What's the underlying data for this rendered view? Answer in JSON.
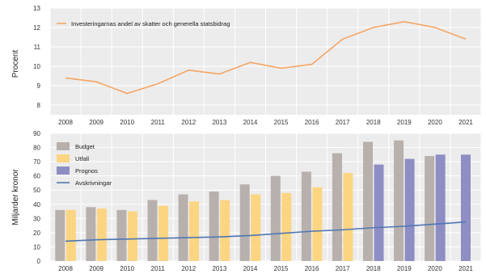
{
  "colors": {
    "panel_bg": "#ececec",
    "grid": "#ffffff",
    "line_series": "#f5a562",
    "budget": "#b8b0ac",
    "utfall": "#fcd582",
    "prognos": "#8e8ec4",
    "avskrivningar": "#4e77b3"
  },
  "chart_data": [
    {
      "type": "line",
      "title": "",
      "xlabel": "",
      "ylabel": "Procent",
      "x": [
        "2008",
        "2009",
        "2010",
        "2011",
        "2012",
        "2013",
        "2014",
        "2015",
        "2016",
        "2017",
        "2018",
        "2019",
        "2020",
        "2021"
      ],
      "series": [
        {
          "name": "Investeringarnas andel av skatter och generella statsbidrag",
          "values": [
            9.4,
            9.2,
            8.6,
            9.1,
            9.8,
            9.6,
            10.2,
            9.9,
            10.1,
            11.4,
            12.0,
            12.3,
            12.0,
            11.4
          ]
        }
      ],
      "ylim": [
        7.5,
        13
      ],
      "yticks": [
        "8",
        "9",
        "10",
        "11",
        "12",
        "13"
      ],
      "grid": true,
      "legend_position": "top-left"
    },
    {
      "type": "bar",
      "title": "",
      "xlabel": "",
      "ylabel": "Miljarder kronor",
      "categories": [
        "2008",
        "2009",
        "2010",
        "2011",
        "2012",
        "2013",
        "2014",
        "2015",
        "2016",
        "2017",
        "2018",
        "2019",
        "2020",
        "2021"
      ],
      "series": [
        {
          "name": "Budget",
          "values": [
            36,
            38,
            36,
            43,
            47,
            49,
            54,
            60,
            63,
            76,
            84,
            85,
            74,
            null
          ]
        },
        {
          "name": "Utfall",
          "values": [
            36,
            37,
            35,
            39,
            42,
            43,
            47,
            48,
            52,
            62,
            null,
            null,
            null,
            null
          ]
        },
        {
          "name": "Prognos",
          "values": [
            null,
            null,
            null,
            null,
            null,
            null,
            null,
            null,
            null,
            null,
            68,
            72,
            75,
            75
          ]
        },
        {
          "name": "Avskrivningar",
          "type": "line",
          "values": [
            14,
            15,
            15.5,
            16,
            16.5,
            17,
            18,
            19.5,
            21,
            22,
            23.5,
            24.5,
            26,
            27.5
          ]
        }
      ],
      "ylim": [
        0,
        90
      ],
      "yticks": [
        "0",
        "10",
        "20",
        "30",
        "40",
        "50",
        "60",
        "70",
        "80",
        "90"
      ],
      "grid": true,
      "legend_position": "top-left"
    }
  ]
}
